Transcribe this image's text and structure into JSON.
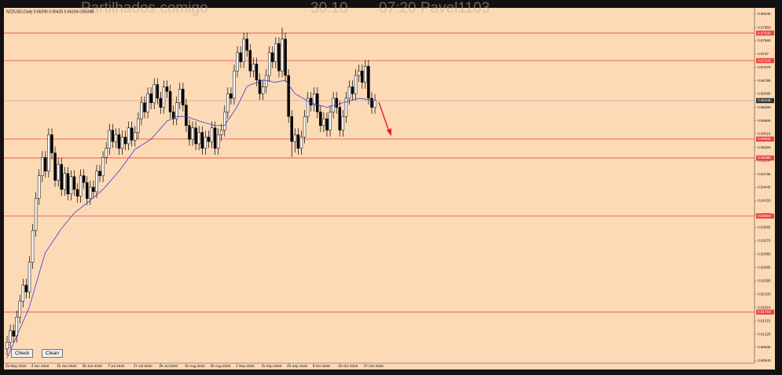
{
  "overlay": [
    "Partilhados comigo",
    "30.10",
    "07:20 Pavel1103"
  ],
  "buttons": [
    "Check",
    "Clean"
  ],
  "chart_data": {
    "type": "candlestick",
    "title": "NZDUSD,Daily  0.66296 0.66425 0.66194 0.66348",
    "categories": [
      "22 May 2020",
      null,
      null,
      null,
      null,
      null,
      null,
      null,
      "3 Jun 2020",
      null,
      null,
      null,
      null,
      null,
      null,
      null,
      "15 Jun 2020",
      null,
      null,
      null,
      null,
      null,
      null,
      null,
      "25 Jun 2020",
      null,
      null,
      null,
      null,
      null,
      null,
      null,
      "7 Jul 2020",
      null,
      null,
      null,
      null,
      null,
      null,
      null,
      "17 Jul 2020",
      null,
      null,
      null,
      null,
      null,
      null,
      null,
      "29 Jul 2020",
      null,
      null,
      null,
      null,
      null,
      null,
      null,
      "10 Aug 2020",
      null,
      null,
      null,
      null,
      null,
      null,
      null,
      "20 Aug 2020",
      null,
      null,
      null,
      null,
      null,
      null,
      null,
      "1 Sep 2020",
      null,
      null,
      null,
      null,
      null,
      null,
      null,
      "11 Sep 2020",
      null,
      null,
      null,
      null,
      null,
      null,
      null,
      "23 Sep 2020",
      null,
      null,
      null,
      null,
      null,
      null,
      null,
      "5 Oct 2020",
      null,
      null,
      null,
      null,
      null,
      null,
      null,
      "15 Oct 2020",
      null,
      null,
      null,
      null,
      null,
      null,
      null,
      "27 Oct 2020",
      null,
      null,
      null
    ],
    "up_color": "#ffffff",
    "down_color": "#000000",
    "outline_color": "#000000",
    "open": [
      0.609,
      0.6105,
      0.613,
      0.6118,
      0.616,
      0.6195,
      0.623,
      0.6215,
      0.628,
      0.635,
      0.642,
      0.647,
      0.651,
      0.648,
      0.656,
      0.652,
      0.646,
      0.6495,
      0.644,
      0.6475,
      0.643,
      0.6468,
      0.644,
      0.6425,
      0.647,
      0.6455,
      0.642,
      0.6445,
      0.6435,
      0.648,
      0.647,
      0.651,
      0.653,
      0.657,
      0.6545,
      0.656,
      0.653,
      0.6555,
      0.654,
      0.6575,
      0.6548,
      0.6565,
      0.6595,
      0.663,
      0.661,
      0.665,
      0.663,
      0.667,
      0.664,
      0.662,
      0.6665,
      0.6655,
      0.661,
      0.6595,
      0.663,
      0.666,
      0.6625,
      0.658,
      0.655,
      0.6575,
      0.654,
      0.6565,
      0.653,
      0.6555,
      0.6545,
      0.6575,
      0.653,
      0.656,
      0.657,
      0.661,
      0.665,
      0.664,
      0.67,
      0.674,
      0.672,
      0.677,
      0.6745,
      0.67,
      0.6715,
      0.668,
      0.665,
      0.6665,
      0.669,
      0.674,
      0.672,
      0.676,
      0.67,
      0.677,
      0.669,
      0.66,
      0.6545,
      0.656,
      0.653,
      0.6555,
      0.66,
      0.664,
      0.6625,
      0.665,
      0.661,
      0.658,
      0.6595,
      0.657,
      0.661,
      0.664,
      0.662,
      0.657,
      0.66,
      0.664,
      0.6665,
      0.665,
      0.669,
      0.67,
      0.6675,
      0.671,
      0.664,
      0.662
    ],
    "high": [
      0.6119,
      0.6144,
      0.6144,
      0.6174,
      0.6209,
      0.6244,
      0.6244,
      0.6294,
      0.6364,
      0.6434,
      0.6484,
      0.6524,
      0.6524,
      0.6574,
      0.6574,
      0.6534,
      0.6509,
      0.6509,
      0.6489,
      0.6489,
      0.6482,
      0.6482,
      0.6454,
      0.6484,
      0.6484,
      0.6469,
      0.6459,
      0.6459,
      0.6494,
      0.6494,
      0.6524,
      0.6544,
      0.6584,
      0.6584,
      0.6574,
      0.6574,
      0.6569,
      0.6569,
      0.6589,
      0.6589,
      0.6579,
      0.6609,
      0.6644,
      0.6644,
      0.6664,
      0.6664,
      0.6684,
      0.6684,
      0.6654,
      0.6679,
      0.6679,
      0.6669,
      0.6624,
      0.6644,
      0.6674,
      0.6674,
      0.6639,
      0.6594,
      0.6589,
      0.6589,
      0.6579,
      0.6579,
      0.6569,
      0.6569,
      0.6589,
      0.6589,
      0.6574,
      0.6584,
      0.6624,
      0.6664,
      0.6664,
      0.6714,
      0.6754,
      0.6754,
      0.6784,
      0.6784,
      0.6759,
      0.6729,
      0.6729,
      0.6694,
      0.6679,
      0.6704,
      0.6754,
      0.6754,
      0.6774,
      0.6774,
      0.6795,
      0.6784,
      0.6704,
      0.6614,
      0.6574,
      0.6574,
      0.6569,
      0.6614,
      0.6654,
      0.6654,
      0.6664,
      0.6664,
      0.6624,
      0.6609,
      0.6609,
      0.6624,
      0.6654,
      0.6654,
      0.6634,
      0.6614,
      0.6654,
      0.6679,
      0.6679,
      0.6704,
      0.6714,
      0.6714,
      0.6724,
      0.6724,
      0.6654,
      0.6649
    ],
    "low": [
      0.6076,
      0.6091,
      0.6104,
      0.6104,
      0.6146,
      0.6181,
      0.6201,
      0.6201,
      0.6266,
      0.6336,
      0.6406,
      0.6456,
      0.6466,
      0.6466,
      0.6506,
      0.6446,
      0.6446,
      0.6426,
      0.6426,
      0.6416,
      0.6416,
      0.6426,
      0.6411,
      0.6411,
      0.6441,
      0.6406,
      0.6406,
      0.6421,
      0.6421,
      0.6456,
      0.6456,
      0.6496,
      0.6516,
      0.6531,
      0.6531,
      0.6516,
      0.6516,
      0.6526,
      0.6526,
      0.6534,
      0.6534,
      0.6551,
      0.6581,
      0.6596,
      0.6596,
      0.6616,
      0.6616,
      0.6626,
      0.6606,
      0.6606,
      0.6641,
      0.6596,
      0.6581,
      0.6581,
      0.6616,
      0.6611,
      0.6566,
      0.6536,
      0.6536,
      0.6526,
      0.6526,
      0.6516,
      0.6516,
      0.6531,
      0.6531,
      0.6516,
      0.6516,
      0.6546,
      0.6556,
      0.6596,
      0.6626,
      0.6626,
      0.6686,
      0.6706,
      0.6706,
      0.6731,
      0.6686,
      0.6686,
      0.6666,
      0.6636,
      0.6636,
      0.6651,
      0.6676,
      0.6706,
      0.6706,
      0.6686,
      0.6686,
      0.6676,
      0.6586,
      0.6511,
      0.6521,
      0.6516,
      0.6516,
      0.6541,
      0.6586,
      0.6611,
      0.6611,
      0.6596,
      0.6566,
      0.6566,
      0.6556,
      0.6556,
      0.6596,
      0.6606,
      0.6556,
      0.6556,
      0.6586,
      0.6626,
      0.6636,
      0.6636,
      0.6676,
      0.6661,
      0.6661,
      0.6626,
      0.6606,
      0.6606
    ],
    "close": [
      0.6105,
      0.613,
      0.6118,
      0.616,
      0.6195,
      0.623,
      0.6215,
      0.628,
      0.635,
      0.642,
      0.647,
      0.651,
      0.648,
      0.656,
      0.652,
      0.646,
      0.6495,
      0.644,
      0.6475,
      0.643,
      0.6468,
      0.644,
      0.6425,
      0.647,
      0.6455,
      0.642,
      0.6445,
      0.6435,
      0.648,
      0.647,
      0.651,
      0.653,
      0.657,
      0.6545,
      0.656,
      0.653,
      0.6555,
      0.654,
      0.6575,
      0.6548,
      0.6565,
      0.6595,
      0.663,
      0.661,
      0.665,
      0.663,
      0.667,
      0.664,
      0.662,
      0.6665,
      0.6655,
      0.661,
      0.6595,
      0.663,
      0.666,
      0.6625,
      0.658,
      0.655,
      0.6575,
      0.654,
      0.6565,
      0.653,
      0.6555,
      0.6545,
      0.6575,
      0.653,
      0.656,
      0.657,
      0.661,
      0.665,
      0.664,
      0.67,
      0.674,
      0.672,
      0.677,
      0.6745,
      0.67,
      0.6715,
      0.668,
      0.665,
      0.6665,
      0.669,
      0.674,
      0.672,
      0.676,
      0.67,
      0.677,
      0.669,
      0.66,
      0.6545,
      0.656,
      0.653,
      0.6555,
      0.66,
      0.664,
      0.6625,
      0.665,
      0.661,
      0.658,
      0.6595,
      0.657,
      0.661,
      0.664,
      0.662,
      0.657,
      0.66,
      0.664,
      0.6665,
      0.665,
      0.669,
      0.67,
      0.6675,
      0.671,
      0.664,
      0.662,
      0.6635
    ],
    "moving_average": {
      "color": "#3b3bd6",
      "values": [
        0.607,
        0.6086,
        0.6102,
        0.6118,
        0.6134,
        0.615,
        0.6166,
        0.6183,
        0.6207,
        0.6231,
        0.6255,
        0.6279,
        0.6302,
        0.6312,
        0.6323,
        0.6333,
        0.6344,
        0.6354,
        0.6363,
        0.6371,
        0.638,
        0.6388,
        0.6394,
        0.6399,
        0.6405,
        0.641,
        0.6416,
        0.6422,
        0.6428,
        0.6434,
        0.644,
        0.6448,
        0.6456,
        0.6464,
        0.6472,
        0.648,
        0.649,
        0.6499,
        0.6509,
        0.6518,
        0.6528,
        0.6532,
        0.6537,
        0.6541,
        0.6546,
        0.655,
        0.6558,
        0.6566,
        0.6574,
        0.6582,
        0.659,
        0.6593,
        0.6597,
        0.66,
        0.66,
        0.66,
        0.66,
        0.6598,
        0.6595,
        0.6593,
        0.659,
        0.6588,
        0.6586,
        0.6584,
        0.6582,
        0.658,
        0.658,
        0.658,
        0.658,
        0.6591,
        0.6601,
        0.6612,
        0.6623,
        0.6637,
        0.6652,
        0.6666,
        0.6669,
        0.6672,
        0.6674,
        0.6677,
        0.668,
        0.6679,
        0.6678,
        0.6676,
        0.6675,
        0.6677,
        0.6678,
        0.668,
        0.667,
        0.666,
        0.665,
        0.6646,
        0.6642,
        0.6638,
        0.6634,
        0.663,
        0.6628,
        0.6626,
        0.6624,
        0.6622,
        0.662,
        0.6622,
        0.6624,
        0.6626,
        0.6628,
        0.663,
        0.6632,
        0.6634,
        0.6636,
        0.6638,
        0.664,
        0.6639,
        0.6638,
        0.6637,
        0.6636,
        0.6635
      ]
    },
    "levels": {
      "color": "#e8453c",
      "values": [
        {
          "value": 0.6783,
          "label": "0.67830"
        },
        {
          "value": 0.67225,
          "label": "0.67225"
        },
        {
          "value": 0.65505,
          "label": "0.65505"
        },
        {
          "value": 0.6509,
          "label": "0.65090"
        },
        {
          "value": 0.63815,
          "label": "0.63815"
        },
        {
          "value": 0.6171,
          "label": "0.61710"
        }
      ]
    },
    "current_price": {
      "value": 0.66348,
      "color": "#9a9a9a"
    },
    "background": "#fddab6",
    "ylim": [
      0.60588,
      0.68383
    ],
    "yticks": [
      0.68245,
      {
        "value": 0.6795,
        "label": "0.67950"
      },
      {
        "value": 0.6766,
        "label": "0.67660"
      },
      0.6737,
      0.67075,
      0.66785,
      0.66495,
      {
        "value": 0.662,
        "label": "0.66200"
      },
      0.65905,
      0.65615,
      {
        "value": 0.6532,
        "label": "0.65320"
      },
      {
        "value": 0.6503,
        "label": "0.65030"
      },
      0.64735,
      0.64445,
      {
        "value": 0.6415,
        "label": "0.64150"
      },
      0.63855,
      0.63565,
      {
        "value": 0.6327,
        "label": "0.63270"
      },
      {
        "value": 0.6298,
        "label": "0.62980"
      },
      0.62685,
      0.62395,
      {
        "value": 0.621,
        "label": "0.62100"
      },
      {
        "value": 0.6181,
        "label": "0.61810"
      },
      0.61515,
      0.61225,
      0.60935,
      {
        "value": 0.6064,
        "label": "0.60640"
      }
    ]
  }
}
